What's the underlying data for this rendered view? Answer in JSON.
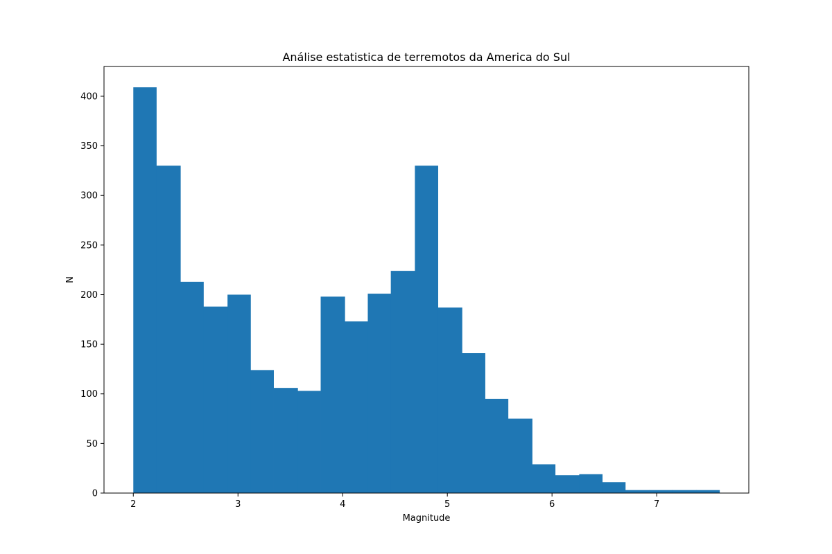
{
  "chart_data": {
    "type": "bar",
    "title": "Análise estatistica de terremotos da America do Sul",
    "xlabel": "Magnitude",
    "ylabel": "N",
    "xlim": [
      1.72,
      7.88
    ],
    "ylim": [
      0,
      430
    ],
    "xticks": [
      2,
      3,
      4,
      5,
      6,
      7
    ],
    "yticks": [
      0,
      50,
      100,
      150,
      200,
      250,
      300,
      350,
      400
    ],
    "grid": false,
    "bar_color": "#1f77b4",
    "bins": [
      {
        "x0": 2.0,
        "x1": 2.22,
        "count": 409
      },
      {
        "x0": 2.22,
        "x1": 2.45,
        "count": 330
      },
      {
        "x0": 2.45,
        "x1": 2.67,
        "count": 213
      },
      {
        "x0": 2.67,
        "x1": 2.9,
        "count": 188
      },
      {
        "x0": 2.9,
        "x1": 3.12,
        "count": 200
      },
      {
        "x0": 3.12,
        "x1": 3.34,
        "count": 124
      },
      {
        "x0": 3.34,
        "x1": 3.57,
        "count": 106
      },
      {
        "x0": 3.57,
        "x1": 3.79,
        "count": 103
      },
      {
        "x0": 3.79,
        "x1": 4.02,
        "count": 198
      },
      {
        "x0": 4.02,
        "x1": 4.24,
        "count": 173
      },
      {
        "x0": 4.24,
        "x1": 4.46,
        "count": 201
      },
      {
        "x0": 4.46,
        "x1": 4.69,
        "count": 224
      },
      {
        "x0": 4.69,
        "x1": 4.91,
        "count": 330
      },
      {
        "x0": 4.91,
        "x1": 5.14,
        "count": 187
      },
      {
        "x0": 5.14,
        "x1": 5.36,
        "count": 141
      },
      {
        "x0": 5.36,
        "x1": 5.58,
        "count": 95
      },
      {
        "x0": 5.58,
        "x1": 5.81,
        "count": 75
      },
      {
        "x0": 5.81,
        "x1": 6.03,
        "count": 29
      },
      {
        "x0": 6.03,
        "x1": 6.26,
        "count": 18
      },
      {
        "x0": 6.26,
        "x1": 6.48,
        "count": 19
      },
      {
        "x0": 6.48,
        "x1": 6.7,
        "count": 11
      },
      {
        "x0": 6.7,
        "x1": 6.93,
        "count": 3
      },
      {
        "x0": 6.93,
        "x1": 7.15,
        "count": 3
      },
      {
        "x0": 7.15,
        "x1": 7.38,
        "count": 3
      },
      {
        "x0": 7.38,
        "x1": 7.6,
        "count": 3
      }
    ]
  }
}
